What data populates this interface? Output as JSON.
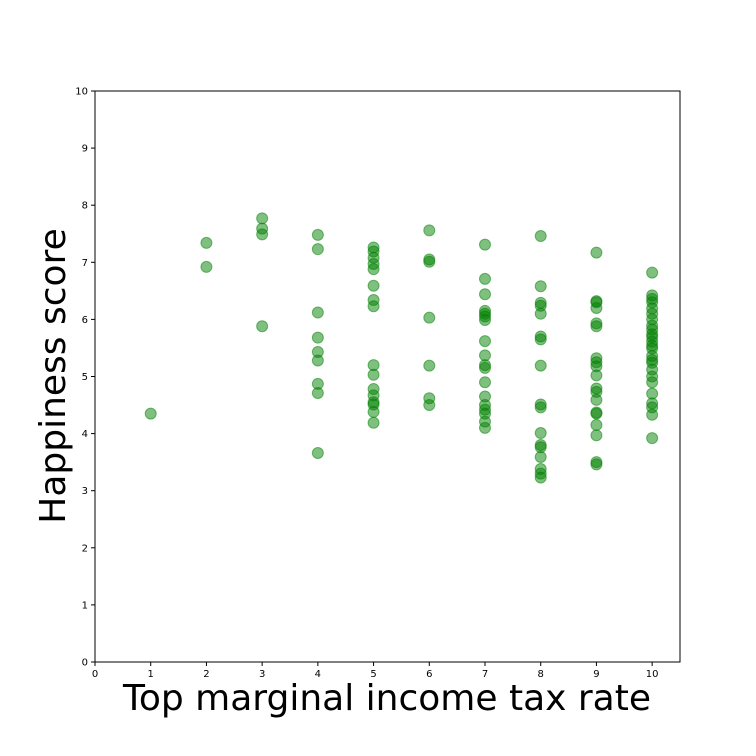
{
  "chart_data": {
    "type": "scatter",
    "title": "",
    "xlabel": "Top marginal income tax rate",
    "ylabel": "Happiness score",
    "xlim": [
      0,
      10.5
    ],
    "ylim": [
      0,
      10
    ],
    "xticks": [
      0,
      1,
      2,
      3,
      4,
      5,
      6,
      7,
      8,
      9,
      10
    ],
    "yticks": [
      0,
      1,
      2,
      3,
      4,
      5,
      6,
      7,
      8,
      9,
      10
    ],
    "grid": false,
    "legend": "none",
    "marker_color": "#008000",
    "marker_alpha": 0.5,
    "series": [
      {
        "points": [
          [
            1,
            4.35
          ],
          [
            2,
            7.34
          ],
          [
            2,
            6.92
          ],
          [
            3,
            7.77
          ],
          [
            3,
            7.59
          ],
          [
            3,
            7.49
          ],
          [
            3,
            5.88
          ],
          [
            4,
            7.48
          ],
          [
            4,
            7.23
          ],
          [
            4,
            6.12
          ],
          [
            4,
            5.68
          ],
          [
            4,
            5.43
          ],
          [
            4,
            5.28
          ],
          [
            4,
            4.87
          ],
          [
            4,
            4.71
          ],
          [
            4,
            3.66
          ],
          [
            5,
            7.26
          ],
          [
            5,
            7.19
          ],
          [
            5,
            7.08
          ],
          [
            5,
            6.97
          ],
          [
            5,
            6.88
          ],
          [
            5,
            6.59
          ],
          [
            5,
            6.34
          ],
          [
            5,
            6.23
          ],
          [
            5,
            5.2
          ],
          [
            5,
            5.03
          ],
          [
            5,
            4.78
          ],
          [
            5,
            4.67
          ],
          [
            5,
            4.55
          ],
          [
            5,
            4.51
          ],
          [
            5,
            4.38
          ],
          [
            5,
            4.19
          ],
          [
            6,
            7.56
          ],
          [
            6,
            7.05
          ],
          [
            6,
            7.01
          ],
          [
            6,
            6.03
          ],
          [
            6,
            5.19
          ],
          [
            6,
            4.62
          ],
          [
            6,
            4.5
          ],
          [
            7,
            7.31
          ],
          [
            7,
            6.71
          ],
          [
            7,
            6.44
          ],
          [
            7,
            6.15
          ],
          [
            7,
            6.1
          ],
          [
            7,
            6.05
          ],
          [
            7,
            5.99
          ],
          [
            7,
            5.62
          ],
          [
            7,
            5.37
          ],
          [
            7,
            5.2
          ],
          [
            7,
            5.15
          ],
          [
            7,
            4.9
          ],
          [
            7,
            4.65
          ],
          [
            7,
            4.5
          ],
          [
            7,
            4.42
          ],
          [
            7,
            4.35
          ],
          [
            7,
            4.21
          ],
          [
            7,
            4.1
          ],
          [
            8,
            7.46
          ],
          [
            8,
            6.58
          ],
          [
            8,
            6.29
          ],
          [
            8,
            6.24
          ],
          [
            8,
            6.1
          ],
          [
            8,
            5.7
          ],
          [
            8,
            5.65
          ],
          [
            8,
            5.19
          ],
          [
            8,
            4.51
          ],
          [
            8,
            4.46
          ],
          [
            8,
            4.01
          ],
          [
            8,
            3.8
          ],
          [
            8,
            3.76
          ],
          [
            8,
            3.59
          ],
          [
            8,
            3.38
          ],
          [
            8,
            3.3
          ],
          [
            8,
            3.23
          ],
          [
            9,
            7.17
          ],
          [
            9,
            6.32
          ],
          [
            9,
            6.3
          ],
          [
            9,
            6.2
          ],
          [
            9,
            5.93
          ],
          [
            9,
            5.88
          ],
          [
            9,
            5.32
          ],
          [
            9,
            5.25
          ],
          [
            9,
            5.18
          ],
          [
            9,
            5.02
          ],
          [
            9,
            4.79
          ],
          [
            9,
            4.73
          ],
          [
            9,
            4.59
          ],
          [
            9,
            4.37
          ],
          [
            9,
            4.35
          ],
          [
            9,
            4.15
          ],
          [
            9,
            3.97
          ],
          [
            9,
            3.5
          ],
          [
            9,
            3.46
          ],
          [
            10,
            6.82
          ],
          [
            10,
            6.42
          ],
          [
            10,
            6.36
          ],
          [
            10,
            6.3
          ],
          [
            10,
            6.19
          ],
          [
            10,
            6.1
          ],
          [
            10,
            6.0
          ],
          [
            10,
            5.89
          ],
          [
            10,
            5.82
          ],
          [
            10,
            5.74
          ],
          [
            10,
            5.69
          ],
          [
            10,
            5.61
          ],
          [
            10,
            5.54
          ],
          [
            10,
            5.49
          ],
          [
            10,
            5.36
          ],
          [
            10,
            5.29
          ],
          [
            10,
            5.24
          ],
          [
            10,
            5.12
          ],
          [
            10,
            5.0
          ],
          [
            10,
            4.9
          ],
          [
            10,
            4.7
          ],
          [
            10,
            4.53
          ],
          [
            10,
            4.46
          ],
          [
            10,
            4.33
          ],
          [
            10,
            3.92
          ]
        ]
      }
    ]
  }
}
